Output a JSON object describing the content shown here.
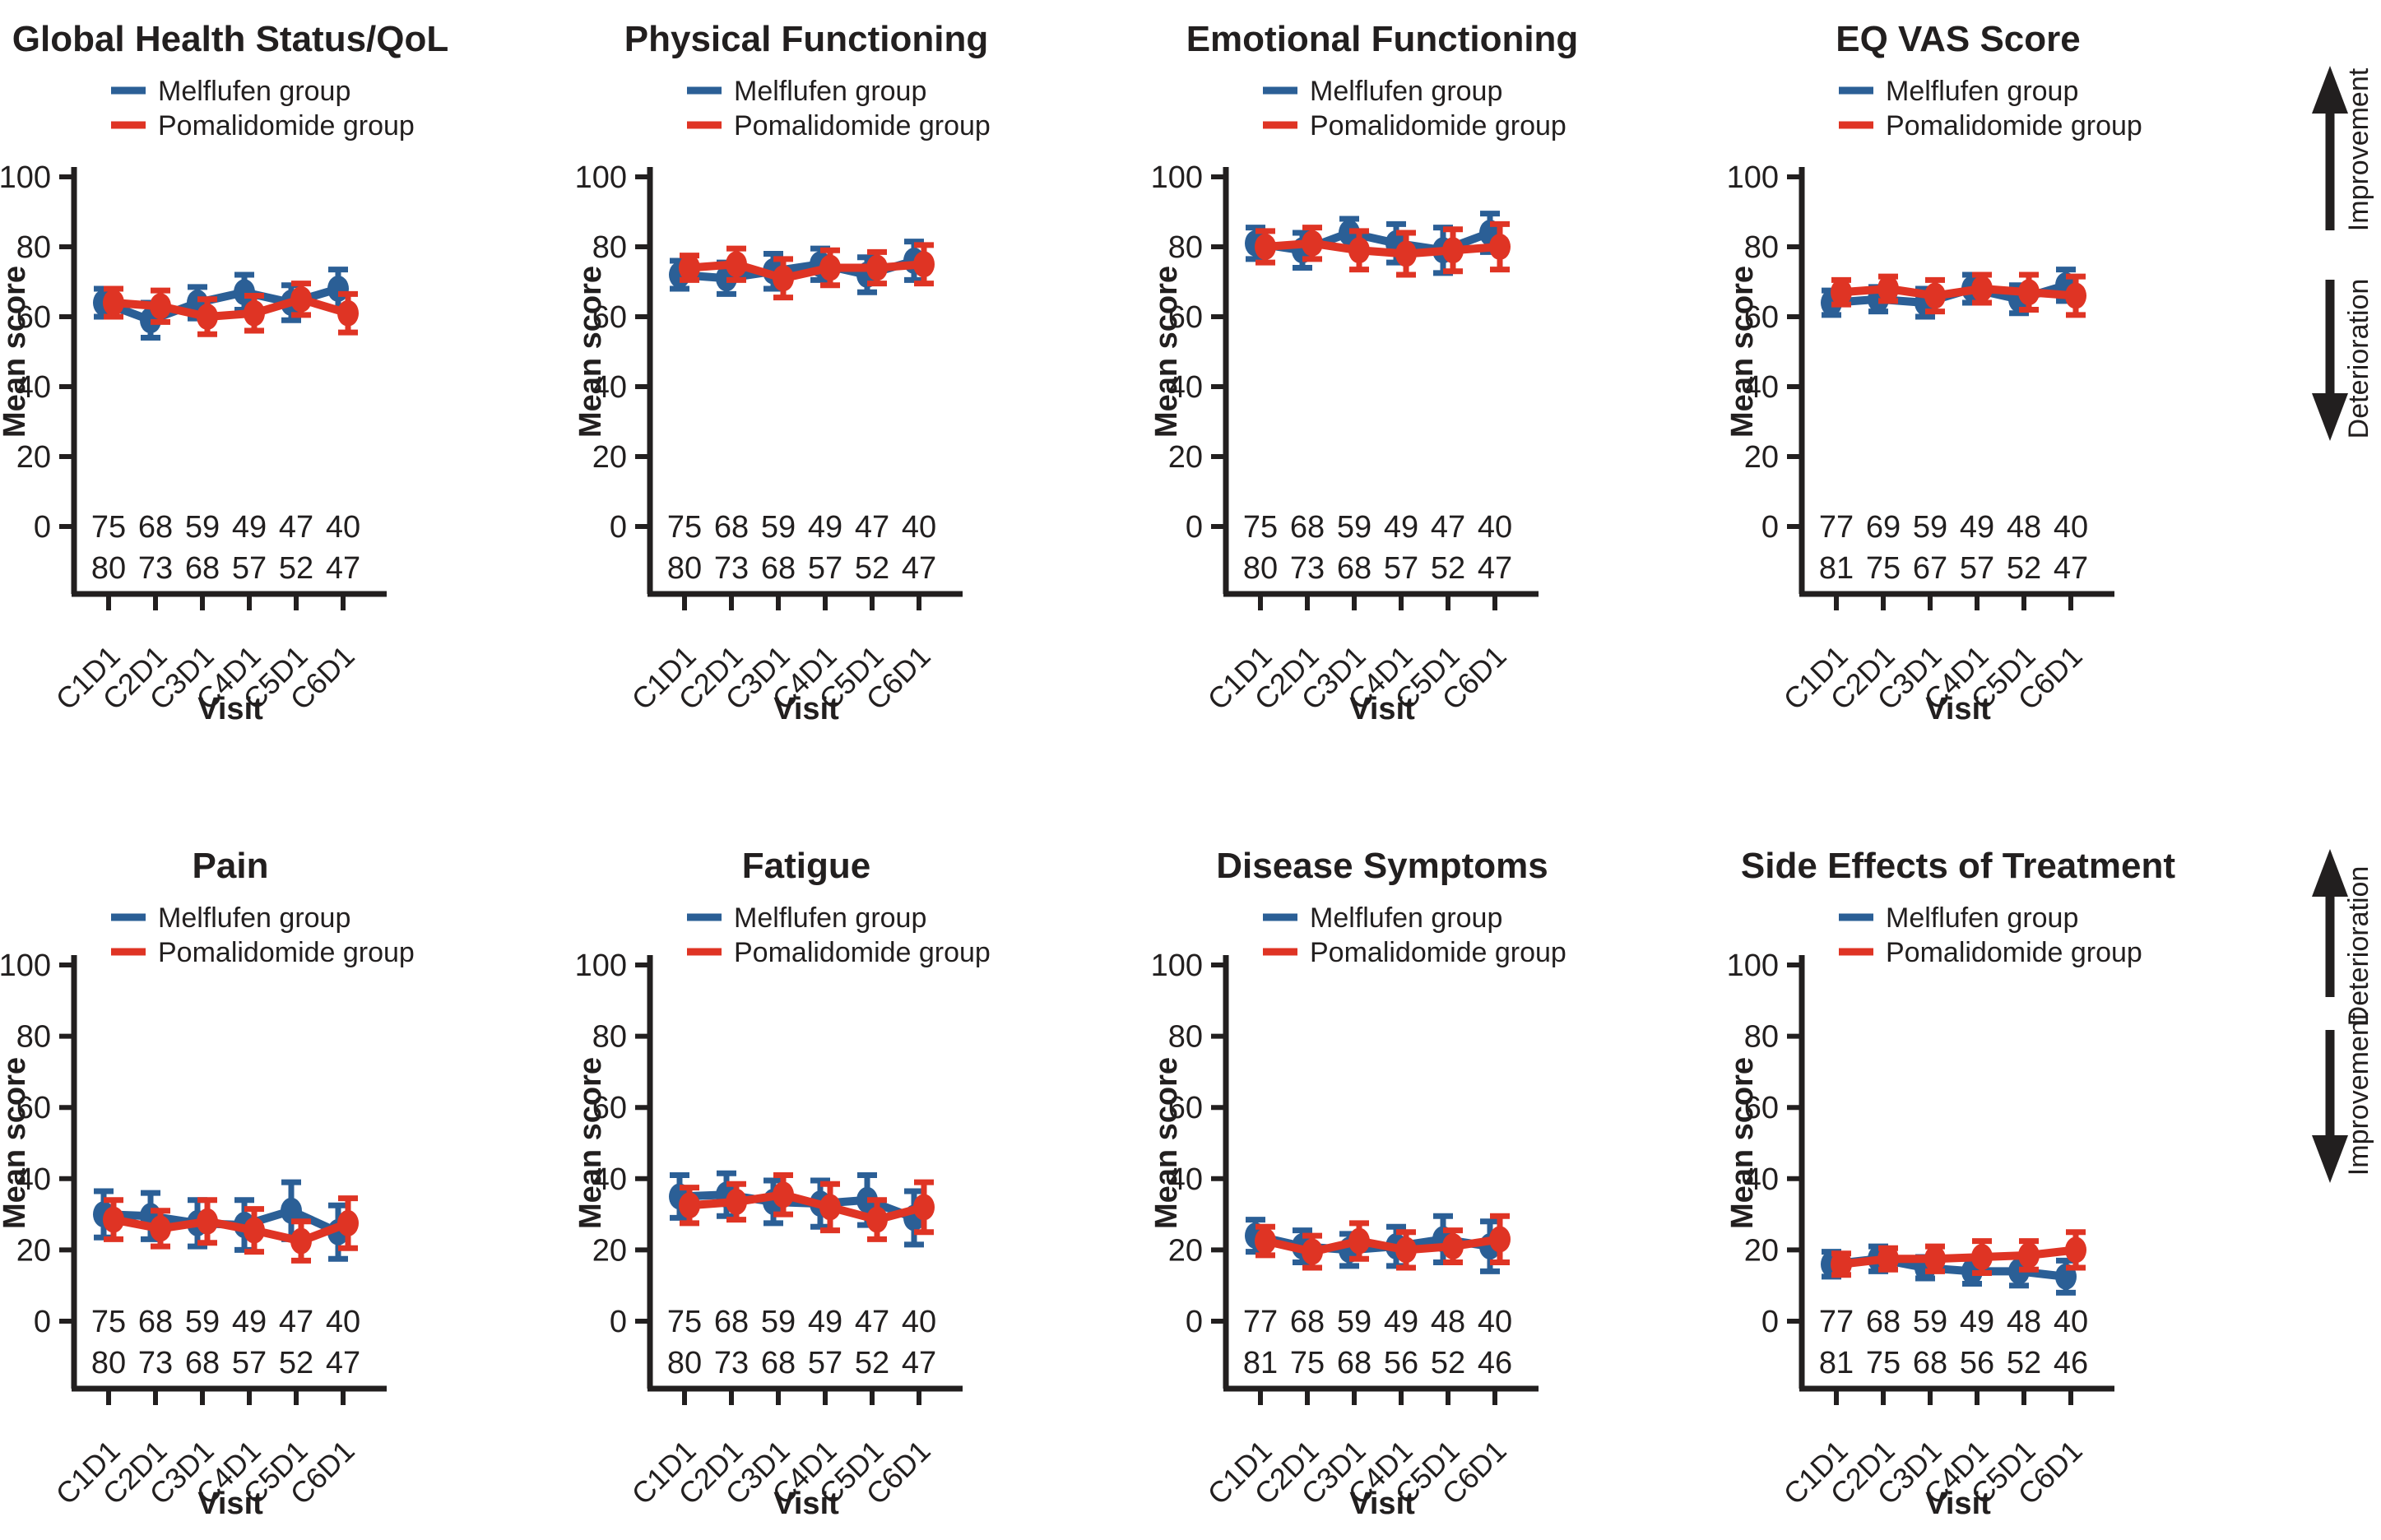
{
  "figure": {
    "background": "#ffffff",
    "colors": {
      "melflufen": "#2B5F96",
      "pomalidomide": "#DF3424",
      "axis": "#221f1f",
      "arrow": "#221f1f"
    },
    "legend": {
      "melflufen": "Melflufen group",
      "pomalidomide": "Pomalidomide group"
    },
    "axes": {
      "ylabel": "Mean score",
      "xlabel": "Visit",
      "yticks": [
        0,
        20,
        40,
        60,
        80,
        100
      ],
      "ylim": [
        0,
        100
      ]
    },
    "annotations": {
      "row1": {
        "up": "Improvement",
        "down": "Deterioration"
      },
      "row2": {
        "up": "Deterioration",
        "down": "Improvement"
      }
    }
  },
  "chart_data": [
    {
      "type": "line",
      "title": "Global Health Status/QoL",
      "xlabel": "Visit",
      "ylabel": "Mean score",
      "ylim": [
        0,
        100
      ],
      "categories": [
        "C1D1",
        "C2D1",
        "C3D1",
        "C4D1",
        "C5D1",
        "C6D1"
      ],
      "series": [
        {
          "name": "Melflufen group",
          "color": "melflufen",
          "values": [
            64,
            59,
            64,
            67,
            64,
            68
          ],
          "err": [
            4,
            5,
            4.5,
            5,
            5,
            5.5
          ]
        },
        {
          "name": "Pomalidomide group",
          "color": "pomalidomide",
          "values": [
            64,
            63,
            60,
            61,
            65,
            61
          ],
          "err": [
            4,
            4.5,
            5,
            5,
            4.5,
            5.5
          ]
        }
      ],
      "n_below_axis": {
        "melflufen": [
          75,
          68,
          59,
          49,
          47,
          40
        ],
        "pomalidomide": [
          80,
          73,
          68,
          57,
          52,
          47
        ]
      }
    },
    {
      "type": "line",
      "title": "Physical Functioning",
      "xlabel": "Visit",
      "ylabel": "Mean score",
      "ylim": [
        0,
        100
      ],
      "categories": [
        "C1D1",
        "C2D1",
        "C3D1",
        "C4D1",
        "C5D1",
        "C6D1"
      ],
      "series": [
        {
          "name": "Melflufen group",
          "color": "melflufen",
          "values": [
            72,
            71,
            73,
            75,
            72,
            76
          ],
          "err": [
            4,
            4.5,
            5,
            4.5,
            5,
            5.5
          ]
        },
        {
          "name": "Pomalidomide group",
          "color": "pomalidomide",
          "values": [
            74,
            75,
            71,
            74,
            74,
            75
          ],
          "err": [
            3.5,
            4.5,
            5.5,
            5,
            4.5,
            5.5
          ]
        }
      ],
      "n_below_axis": {
        "melflufen": [
          75,
          68,
          59,
          49,
          47,
          40
        ],
        "pomalidomide": [
          80,
          73,
          68,
          57,
          52,
          47
        ]
      }
    },
    {
      "type": "line",
      "title": "Emotional Functioning",
      "xlabel": "Visit",
      "ylabel": "Mean score",
      "ylim": [
        0,
        100
      ],
      "categories": [
        "C1D1",
        "C2D1",
        "C3D1",
        "C4D1",
        "C5D1",
        "C6D1"
      ],
      "series": [
        {
          "name": "Melflufen group",
          "color": "melflufen",
          "values": [
            81,
            79,
            84,
            81,
            79,
            84
          ],
          "err": [
            4.5,
            5,
            4,
            5.5,
            6.5,
            5.5
          ]
        },
        {
          "name": "Pomalidomide group",
          "color": "pomalidomide",
          "values": [
            80,
            81,
            79,
            78,
            79,
            80
          ],
          "err": [
            4.5,
            4.5,
            5.5,
            6,
            6,
            6.5
          ]
        }
      ],
      "n_below_axis": {
        "melflufen": [
          75,
          68,
          59,
          49,
          47,
          40
        ],
        "pomalidomide": [
          80,
          73,
          68,
          57,
          52,
          47
        ]
      }
    },
    {
      "type": "line",
      "title": "EQ VAS Score",
      "xlabel": "Visit",
      "ylabel": "Mean score",
      "ylim": [
        0,
        100
      ],
      "categories": [
        "C1D1",
        "C2D1",
        "C3D1",
        "C4D1",
        "C5D1",
        "C6D1"
      ],
      "series": [
        {
          "name": "Melflufen group",
          "color": "melflufen",
          "values": [
            64,
            65,
            64,
            68,
            65,
            69
          ],
          "err": [
            3.5,
            3.5,
            4,
            4,
            4,
            4.5
          ]
        },
        {
          "name": "Pomalidomide group",
          "color": "pomalidomide",
          "values": [
            67,
            68,
            66,
            68,
            67,
            66
          ],
          "err": [
            3.5,
            3.5,
            4.5,
            4,
            5,
            5.5
          ]
        }
      ],
      "n_below_axis": {
        "melflufen": [
          77,
          69,
          59,
          49,
          48,
          40
        ],
        "pomalidomide": [
          81,
          75,
          67,
          57,
          52,
          47
        ]
      }
    },
    {
      "type": "line",
      "title": "Pain",
      "xlabel": "Visit",
      "ylabel": "Mean score",
      "ylim": [
        0,
        100
      ],
      "categories": [
        "C1D1",
        "C2D1",
        "C3D1",
        "C4D1",
        "C5D1",
        "C6D1"
      ],
      "series": [
        {
          "name": "Melflufen group",
          "color": "melflufen",
          "values": [
            30,
            29.5,
            27.5,
            27,
            31,
            25
          ],
          "err": [
            6.5,
            6.5,
            6.5,
            7,
            8,
            7.5
          ]
        },
        {
          "name": "Pomalidomide group",
          "color": "pomalidomide",
          "values": [
            28.5,
            26,
            28,
            25.5,
            22.5,
            27.5
          ],
          "err": [
            5.5,
            5,
            6,
            6,
            5.5,
            7
          ]
        }
      ],
      "n_below_axis": {
        "melflufen": [
          75,
          68,
          59,
          49,
          47,
          40
        ],
        "pomalidomide": [
          80,
          73,
          68,
          57,
          52,
          47
        ]
      }
    },
    {
      "type": "line",
      "title": "Fatigue",
      "xlabel": "Visit",
      "ylabel": "Mean score",
      "ylim": [
        0,
        100
      ],
      "categories": [
        "C1D1",
        "C2D1",
        "C3D1",
        "C4D1",
        "C5D1",
        "C6D1"
      ],
      "series": [
        {
          "name": "Melflufen group",
          "color": "melflufen",
          "values": [
            35,
            35.5,
            33.5,
            33,
            34,
            29
          ],
          "err": [
            6,
            6,
            6,
            6.5,
            7,
            7.5
          ]
        },
        {
          "name": "Pomalidomide group",
          "color": "pomalidomide",
          "values": [
            32.5,
            33.5,
            35.5,
            32,
            28.5,
            32
          ],
          "err": [
            5,
            5,
            5.5,
            6.5,
            5.5,
            7
          ]
        }
      ],
      "n_below_axis": {
        "melflufen": [
          75,
          68,
          59,
          49,
          47,
          40
        ],
        "pomalidomide": [
          80,
          73,
          68,
          57,
          52,
          47
        ]
      }
    },
    {
      "type": "line",
      "title": "Disease Symptoms",
      "xlabel": "Visit",
      "ylabel": "Mean score",
      "ylim": [
        0,
        100
      ],
      "categories": [
        "C1D1",
        "C2D1",
        "C3D1",
        "C4D1",
        "C5D1",
        "C6D1"
      ],
      "series": [
        {
          "name": "Melflufen group",
          "color": "melflufen",
          "values": [
            24,
            21,
            20,
            21,
            23,
            21
          ],
          "err": [
            4.5,
            4.5,
            4.5,
            5.5,
            6.5,
            7
          ]
        },
        {
          "name": "Pomalidomide group",
          "color": "pomalidomide",
          "values": [
            22.5,
            19.5,
            22.5,
            20,
            21,
            23
          ],
          "err": [
            4,
            4.5,
            5,
            5,
            4.5,
            6.5
          ]
        }
      ],
      "n_below_axis": {
        "melflufen": [
          77,
          68,
          59,
          49,
          48,
          40
        ],
        "pomalidomide": [
          81,
          75,
          68,
          56,
          52,
          46
        ]
      }
    },
    {
      "type": "line",
      "title": "Side Effects of Treatment",
      "xlabel": "Visit",
      "ylabel": "Mean score",
      "ylim": [
        0,
        100
      ],
      "categories": [
        "C1D1",
        "C2D1",
        "C3D1",
        "C4D1",
        "C5D1",
        "C6D1"
      ],
      "series": [
        {
          "name": "Melflufen group",
          "color": "melflufen",
          "values": [
            16,
            17.5,
            15,
            14,
            14,
            12.5
          ],
          "err": [
            3.5,
            3.5,
            3,
            3.5,
            4,
            4.5
          ]
        },
        {
          "name": "Pomalidomide group",
          "color": "pomalidomide",
          "values": [
            16,
            17.5,
            17.5,
            18,
            18.5,
            20
          ],
          "err": [
            3,
            3,
            3.5,
            4.5,
            4,
            5
          ]
        }
      ],
      "n_below_axis": {
        "melflufen": [
          77,
          68,
          59,
          49,
          48,
          40
        ],
        "pomalidomide": [
          81,
          75,
          68,
          56,
          52,
          46
        ]
      }
    }
  ]
}
